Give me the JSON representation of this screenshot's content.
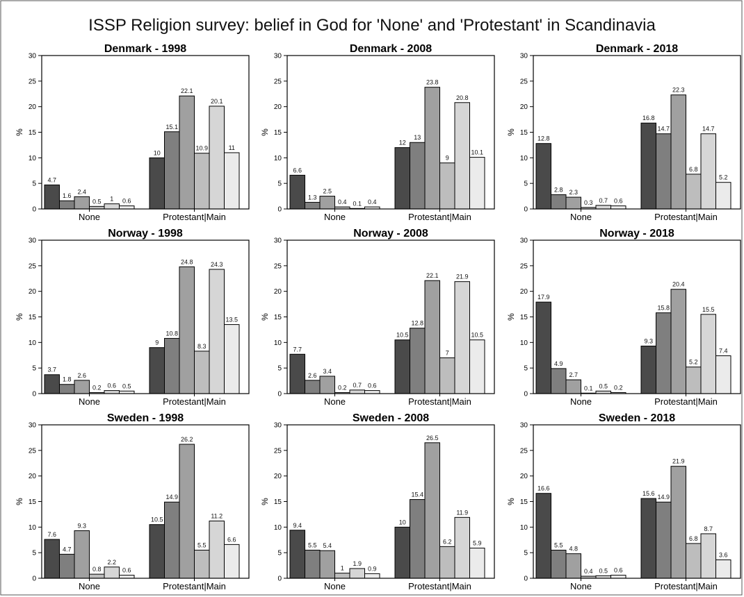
{
  "title": "ISSP Religion survey: belief in God for 'None' and 'Protestant' in Scandinavia",
  "colors": [
    "#4a4a4a",
    "#7f7f7f",
    "#a0a0a0",
    "#bdbdbd",
    "#d6d6d6",
    "#ebebeb"
  ],
  "chart_data": [
    {
      "type": "bar",
      "title": "Denmark - 1998",
      "categories": [
        "None",
        "Protestant|Main"
      ],
      "ylabel": "%",
      "ylim": [
        0,
        30
      ],
      "yticks": [
        "0",
        "5",
        "10",
        "15",
        "20",
        "25",
        "30"
      ],
      "groups": [
        [
          4.7,
          1.6,
          2.4,
          0.5,
          1,
          0.6
        ],
        [
          10,
          15.1,
          22.1,
          10.9,
          20.1,
          11
        ]
      ]
    },
    {
      "type": "bar",
      "title": "Denmark - 2008",
      "categories": [
        "None",
        "Protestant|Main"
      ],
      "ylabel": "%",
      "ylim": [
        0,
        30
      ],
      "yticks": [
        "0",
        "5",
        "10",
        "15",
        "20",
        "25",
        "30"
      ],
      "groups": [
        [
          6.6,
          1.3,
          2.5,
          0.4,
          0.1,
          0.4
        ],
        [
          12,
          13,
          23.8,
          9,
          20.8,
          10.1
        ]
      ]
    },
    {
      "type": "bar",
      "title": "Denmark - 2018",
      "categories": [
        "None",
        "Protestant|Main"
      ],
      "ylabel": "%",
      "ylim": [
        0,
        30
      ],
      "yticks": [
        "0",
        "5",
        "10",
        "15",
        "20",
        "25",
        "30"
      ],
      "groups": [
        [
          12.8,
          2.8,
          2.3,
          0.3,
          0.7,
          0.6
        ],
        [
          16.8,
          14.7,
          22.3,
          6.8,
          14.7,
          5.2
        ]
      ]
    },
    {
      "type": "bar",
      "title": "Norway - 1998",
      "categories": [
        "None",
        "Protestant|Main"
      ],
      "ylabel": "%",
      "ylim": [
        0,
        30
      ],
      "yticks": [
        "0",
        "5",
        "10",
        "15",
        "20",
        "25",
        "30"
      ],
      "groups": [
        [
          3.7,
          1.8,
          2.6,
          0.2,
          0.6,
          0.5
        ],
        [
          9,
          10.8,
          24.8,
          8.3,
          24.3,
          13.5
        ]
      ]
    },
    {
      "type": "bar",
      "title": "Norway - 2008",
      "categories": [
        "None",
        "Protestant|Main"
      ],
      "ylabel": "%",
      "ylim": [
        0,
        30
      ],
      "yticks": [
        "0",
        "5",
        "10",
        "15",
        "20",
        "25",
        "30"
      ],
      "groups": [
        [
          7.7,
          2.6,
          3.4,
          0.2,
          0.7,
          0.6
        ],
        [
          10.5,
          12.8,
          22.1,
          7,
          21.9,
          10.5
        ]
      ]
    },
    {
      "type": "bar",
      "title": "Norway - 2018",
      "categories": [
        "None",
        "Protestant|Main"
      ],
      "ylabel": "%",
      "ylim": [
        0,
        30
      ],
      "yticks": [
        "0",
        "5",
        "10",
        "15",
        "20",
        "25",
        "30"
      ],
      "groups": [
        [
          17.9,
          4.9,
          2.7,
          0.1,
          0.5,
          0.2
        ],
        [
          9.3,
          15.8,
          20.4,
          5.2,
          15.5,
          7.4
        ]
      ]
    },
    {
      "type": "bar",
      "title": "Sweden - 1998",
      "categories": [
        "None",
        "Protestant|Main"
      ],
      "ylabel": "%",
      "ylim": [
        0,
        30
      ],
      "yticks": [
        "0",
        "5",
        "10",
        "15",
        "20",
        "25",
        "30"
      ],
      "groups": [
        [
          7.6,
          4.7,
          9.3,
          0.8,
          2.2,
          0.6
        ],
        [
          10.5,
          14.9,
          26.2,
          5.5,
          11.2,
          6.6
        ]
      ]
    },
    {
      "type": "bar",
      "title": "Sweden - 2008",
      "categories": [
        "None",
        "Protestant|Main"
      ],
      "ylabel": "%",
      "ylim": [
        0,
        30
      ],
      "yticks": [
        "0",
        "5",
        "10",
        "15",
        "20",
        "25",
        "30"
      ],
      "groups": [
        [
          9.4,
          5.5,
          5.4,
          1,
          1.9,
          0.9
        ],
        [
          10,
          15.4,
          26.5,
          6.2,
          11.9,
          5.9
        ]
      ]
    },
    {
      "type": "bar",
      "title": "Sweden - 2018",
      "categories": [
        "None",
        "Protestant|Main"
      ],
      "ylabel": "%",
      "ylim": [
        0,
        30
      ],
      "yticks": [
        "0",
        "5",
        "10",
        "15",
        "20",
        "25",
        "30"
      ],
      "groups": [
        [
          16.6,
          5.5,
          4.8,
          0.4,
          0.5,
          0.6
        ],
        [
          15.6,
          14.9,
          21.9,
          6.8,
          8.7,
          3.6
        ]
      ]
    }
  ]
}
